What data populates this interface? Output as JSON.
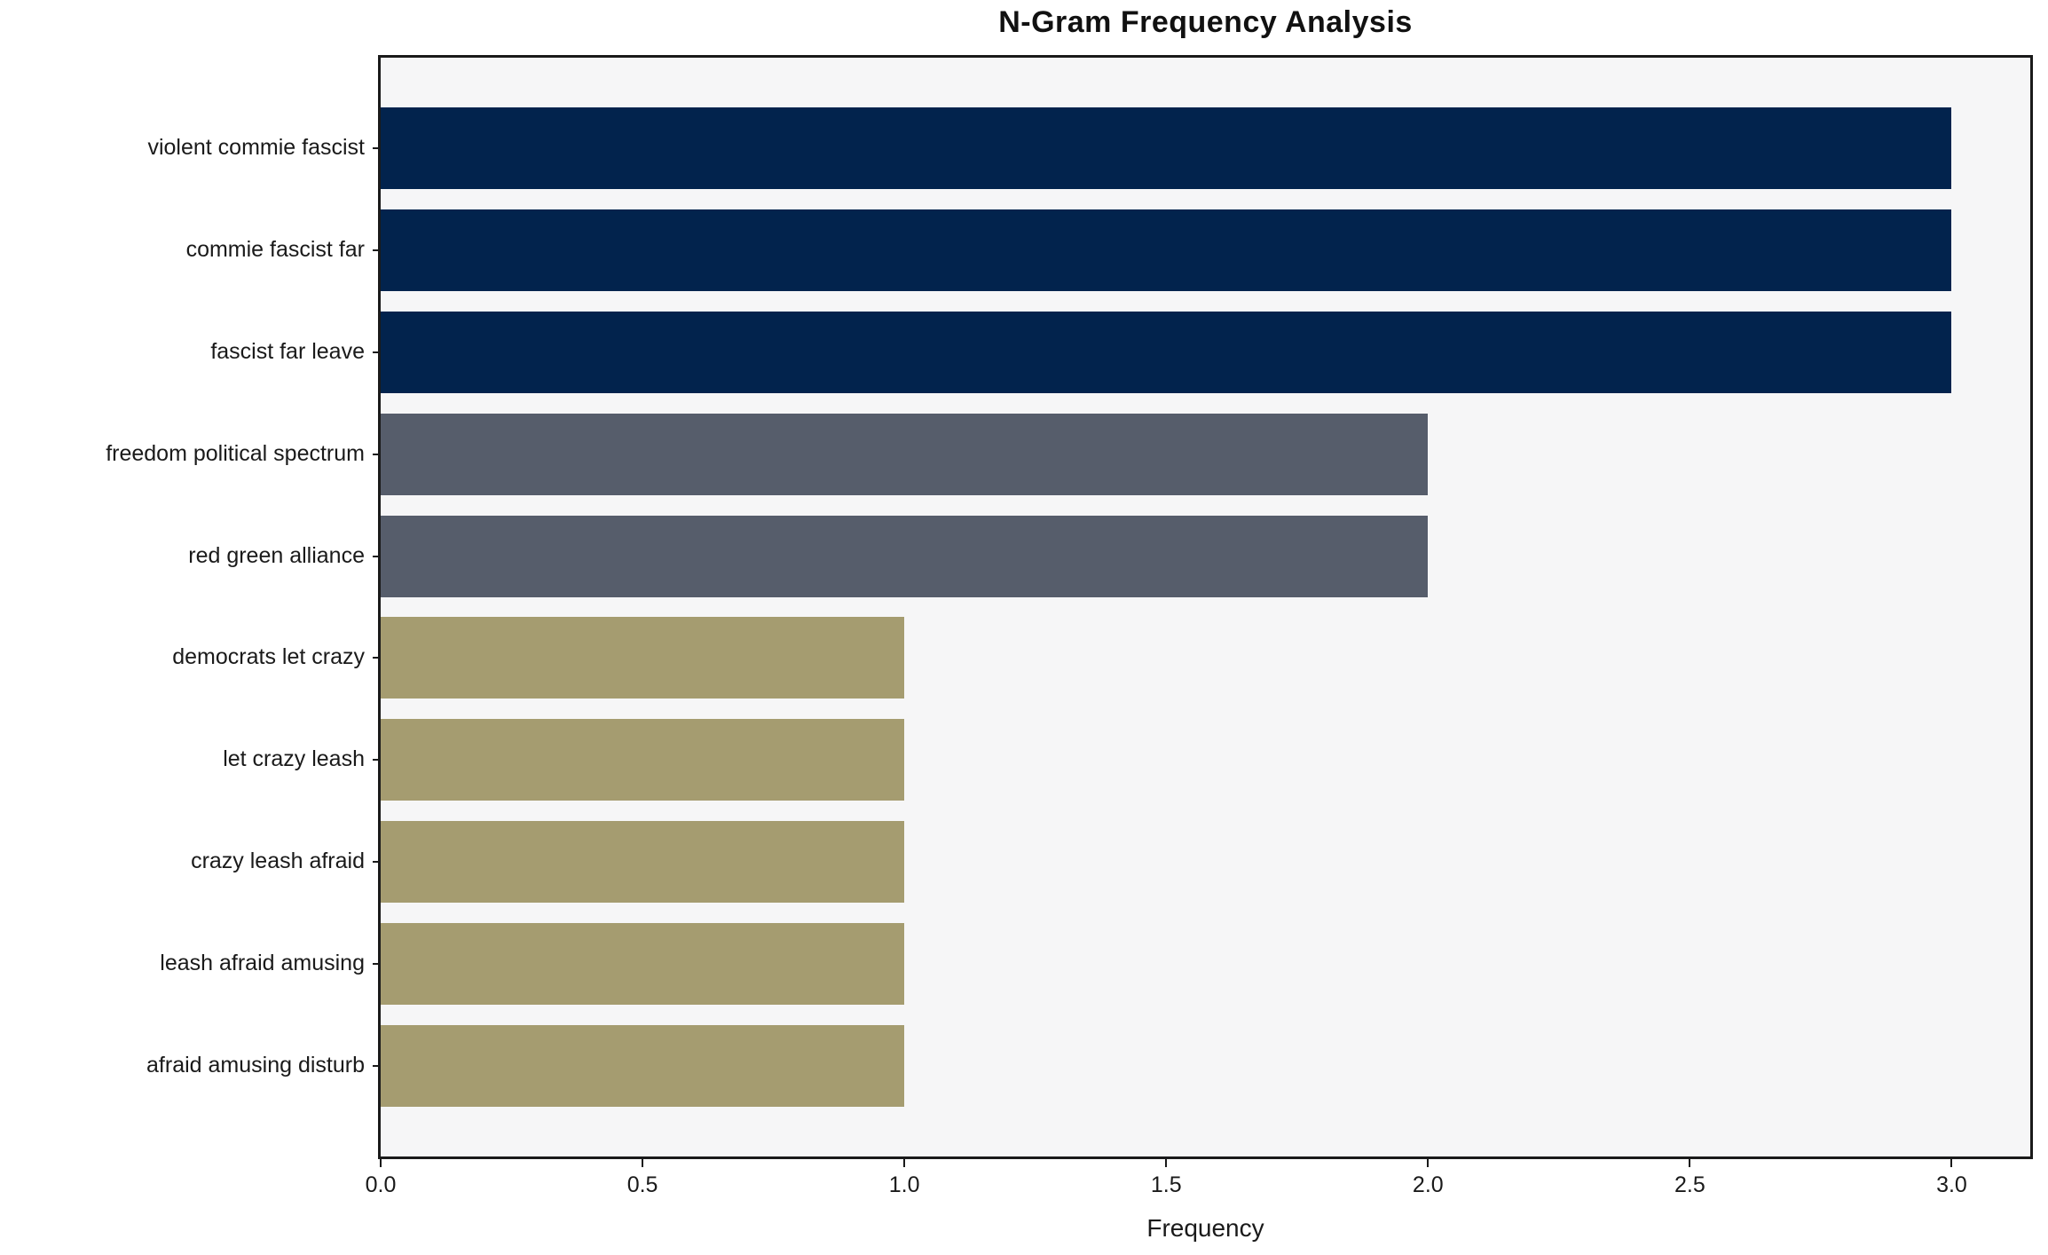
{
  "chart_data": {
    "type": "bar",
    "orientation": "horizontal",
    "title": "N-Gram Frequency Analysis",
    "xlabel": "Frequency",
    "ylabel": "",
    "categories": [
      "violent commie fascist",
      "commie fascist far",
      "fascist far leave",
      "freedom political spectrum",
      "red green alliance",
      "democrats let crazy",
      "let crazy leash",
      "crazy leash afraid",
      "leash afraid amusing",
      "afraid amusing disturb"
    ],
    "values": [
      3,
      3,
      3,
      2,
      2,
      1,
      1,
      1,
      1,
      1
    ],
    "bar_colors": [
      "#02234D",
      "#02234D",
      "#02234D",
      "#565D6B",
      "#565D6B",
      "#A59C70",
      "#A59C70",
      "#A59C70",
      "#A59C70",
      "#A59C70"
    ],
    "xlim": [
      0,
      3.15
    ],
    "x_tick_labels": [
      "0.0",
      "0.5",
      "1.0",
      "1.5",
      "2.0",
      "2.5",
      "3.0"
    ],
    "x_tick_values": [
      0,
      0.5,
      1.0,
      1.5,
      2.0,
      2.5,
      3.0
    ],
    "bar_thickness_ratio": 0.8,
    "y_units_total": 10.78,
    "y_first_bar_center_offset": 0.89,
    "grid": false,
    "legend": null,
    "colors": {
      "plot_bg": "#F6F6F7",
      "figure_bg": "#FFFFFF",
      "spine": "#1A1A1A",
      "text": "#1A1A1A"
    }
  }
}
